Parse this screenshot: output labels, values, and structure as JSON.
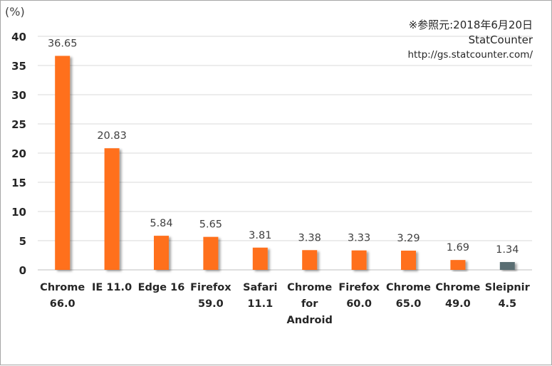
{
  "chart_data": {
    "type": "bar",
    "unit_label": "(%)",
    "categories": [
      "Chrome\n66.0",
      "IE 11.0",
      "Edge 16",
      "Firefox\n59.0",
      "Safari\n11.1",
      "Chrome\nfor\nAndroid",
      "Firefox\n60.0",
      "Chrome\n65.0",
      "Chrome\n49.0",
      "Sleipnir\n4.5"
    ],
    "values": [
      36.65,
      20.83,
      5.84,
      5.65,
      3.81,
      3.38,
      3.33,
      3.29,
      1.69,
      1.34
    ],
    "value_labels": [
      "36.65",
      "20.83",
      "5.84",
      "5.65",
      "3.81",
      "3.38",
      "3.33",
      "3.29",
      "1.69",
      "1.34"
    ],
    "bar_colors": [
      "#ff6f1a",
      "#ff6f1a",
      "#ff6f1a",
      "#ff6f1a",
      "#ff6f1a",
      "#ff6f1a",
      "#ff6f1a",
      "#ff6f1a",
      "#ff6f1a",
      "#5a6e73"
    ],
    "ylim": [
      0,
      40
    ],
    "yticks": [
      "0",
      "5",
      "10",
      "15",
      "20",
      "25",
      "30",
      "35",
      "40"
    ],
    "grid": true,
    "legend": "none"
  },
  "source": {
    "line1": "※参照元:2018年6月20日",
    "line2": "StatCounter",
    "line3": "http://gs.statcounter.com/"
  }
}
